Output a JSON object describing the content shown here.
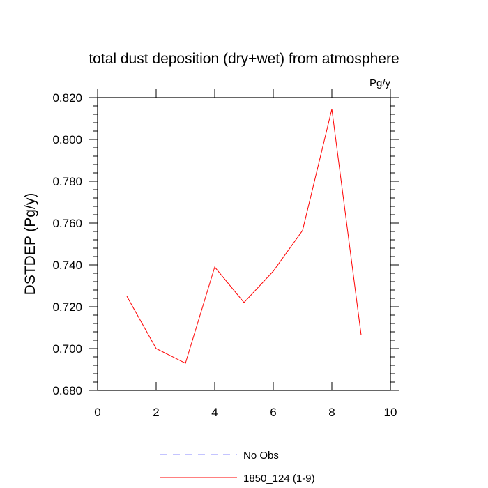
{
  "chart_data": {
    "type": "line",
    "title": "total dust deposition (dry+wet) from atmosphere",
    "units_label": "Pg/y",
    "ylabel": "DSTDEP  (Pg/y)",
    "xlabel": "",
    "xlim": [
      0,
      10
    ],
    "ylim": [
      0.68,
      0.82
    ],
    "x_ticks": [
      0,
      2,
      4,
      6,
      8,
      10
    ],
    "x_tick_labels": [
      "0",
      "2",
      "4",
      "6",
      "8",
      "10"
    ],
    "y_ticks": [
      0.68,
      0.7,
      0.72,
      0.74,
      0.76,
      0.78,
      0.8,
      0.82
    ],
    "y_tick_labels": [
      "0.680",
      "0.700",
      "0.720",
      "0.740",
      "0.760",
      "0.780",
      "0.800",
      "0.820"
    ],
    "grid": false,
    "legend_position": "bottom",
    "series": [
      {
        "name": "1850_124 (1-9)",
        "color": "#ff0000",
        "style": "solid",
        "x": [
          1,
          2,
          3,
          4,
          5,
          6,
          7,
          8,
          9
        ],
        "y": [
          0.725,
          0.7,
          0.693,
          0.739,
          0.722,
          0.737,
          0.7565,
          0.8145,
          0.7065
        ]
      }
    ],
    "legend": [
      {
        "label": "No Obs",
        "color": "#8888ff",
        "style": "dashed"
      },
      {
        "label": "1850_124 (1-9)",
        "color": "#ff0000",
        "style": "solid"
      }
    ]
  }
}
